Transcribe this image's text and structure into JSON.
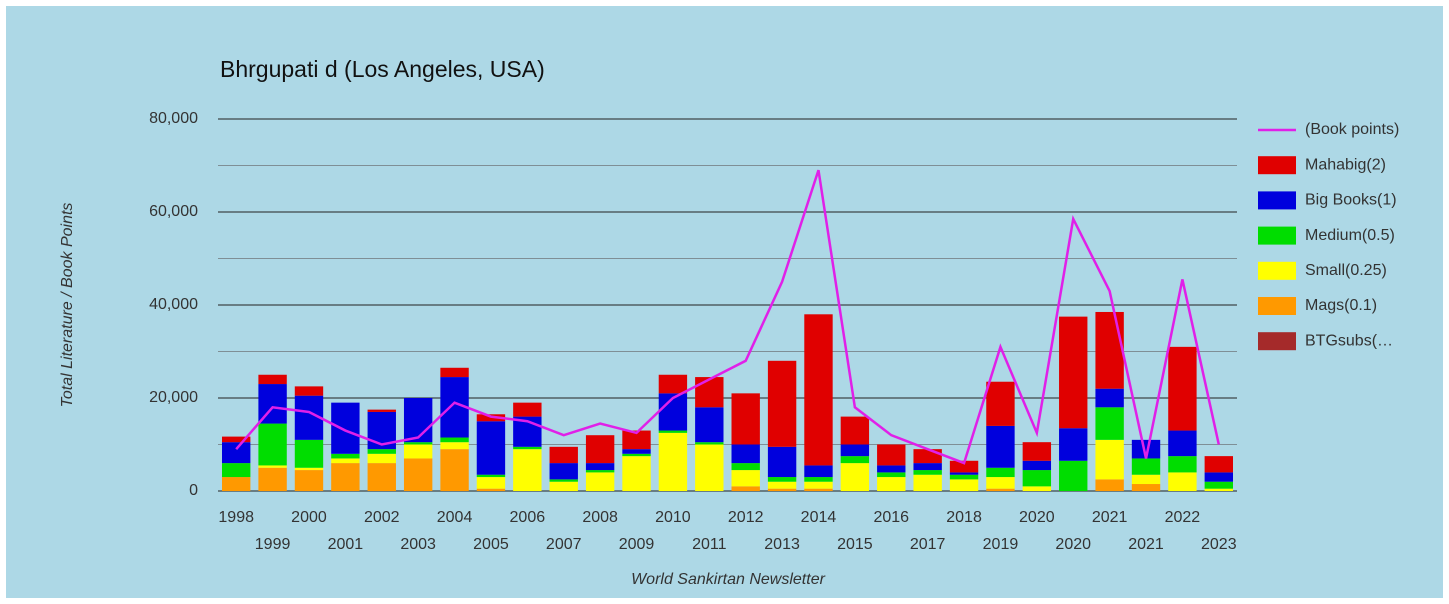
{
  "chart_data": {
    "type": "stacked-bar-line",
    "title": "Bhrgupati d (Los Angeles, USA)",
    "x_label": "World Sankirtan Newsletter",
    "y_label": "Total Literature / Book Points",
    "categories": [
      "1998",
      "1999",
      "2000",
      "2001",
      "2002",
      "2003",
      "2004",
      "2005",
      "2006",
      "2007",
      "2008",
      "2009",
      "2010",
      "2011",
      "2012",
      "2013",
      "2014",
      "2015",
      "2016",
      "2017",
      "2018",
      "2019",
      "2020",
      "2020",
      "2021",
      "2021",
      "2022",
      "2023"
    ],
    "ylim": [
      0,
      80000
    ],
    "yticks": [
      0,
      {
        "value": 20000,
        "label": "20,000"
      },
      {
        "value": 40000,
        "label": "40,000"
      },
      {
        "value": 60000,
        "label": "60,000"
      },
      {
        "value": 80000,
        "label": "80,000"
      }
    ],
    "minor_yticks": [
      10000,
      30000,
      50000,
      70000
    ],
    "grid": true,
    "legend": "right",
    "line": {
      "name": "(Book points)",
      "color": "#e020e8",
      "values": [
        9000,
        18000,
        17000,
        13000,
        10000,
        11500,
        19000,
        16000,
        15000,
        12000,
        14500,
        12500,
        20000,
        24000,
        28000,
        45000,
        69000,
        18000,
        12000,
        9000,
        6000,
        31000,
        12500,
        58500,
        43000,
        7000,
        45500,
        10000
      ]
    },
    "series": [
      {
        "name": "BTGsubs(…",
        "color": "#a52a2a",
        "values": [
          0,
          0,
          0,
          0,
          0,
          0,
          0,
          0,
          0,
          0,
          0,
          0,
          0,
          0,
          0,
          0,
          0,
          0,
          0,
          0,
          0,
          0,
          0,
          0,
          0,
          0,
          0,
          0
        ]
      },
      {
        "name": "Mags(0.1)",
        "color": "#ff9900",
        "values": [
          3000,
          5000,
          4500,
          6000,
          6000,
          7000,
          9000,
          500,
          0,
          0,
          0,
          0,
          0,
          0,
          1000,
          500,
          500,
          0,
          0,
          0,
          0,
          500,
          0,
          0,
          2500,
          1500,
          0,
          0
        ]
      },
      {
        "name": "Small(0.25)",
        "color": "#ffff00",
        "values": [
          0,
          500,
          500,
          1000,
          2000,
          3000,
          1500,
          2500,
          9000,
          2000,
          4000,
          7500,
          12500,
          10000,
          3500,
          1500,
          1500,
          6000,
          3000,
          3500,
          2500,
          2500,
          1000,
          0,
          8500,
          2000,
          4000,
          500
        ]
      },
      {
        "name": "Medium(0.5)",
        "color": "#00dd00",
        "values": [
          3000,
          9000,
          6000,
          1000,
          1000,
          500,
          1000,
          500,
          500,
          500,
          500,
          500,
          500,
          500,
          1500,
          1000,
          1000,
          1500,
          1000,
          1000,
          1000,
          2000,
          3500,
          6500,
          7000,
          3500,
          3500,
          1500
        ]
      },
      {
        "name": "Big Books(1)",
        "color": "#0000dd",
        "values": [
          4500,
          8500,
          9500,
          11000,
          8000,
          9500,
          13000,
          11500,
          6500,
          3500,
          1500,
          1000,
          8000,
          7500,
          4000,
          6500,
          2500,
          2500,
          1500,
          1500,
          500,
          9000,
          2000,
          7000,
          4000,
          4000,
          5500,
          2000
        ]
      },
      {
        "name": "Mahabig(2)",
        "color": "#e00000",
        "values": [
          1200,
          2000,
          2000,
          0,
          500,
          0,
          2000,
          1500,
          3000,
          3500,
          6000,
          4000,
          4000,
          6500,
          11000,
          18500,
          32500,
          6000,
          4500,
          3000,
          2500,
          9500,
          4000,
          24000,
          16500,
          0,
          18000,
          3500
        ]
      }
    ]
  }
}
